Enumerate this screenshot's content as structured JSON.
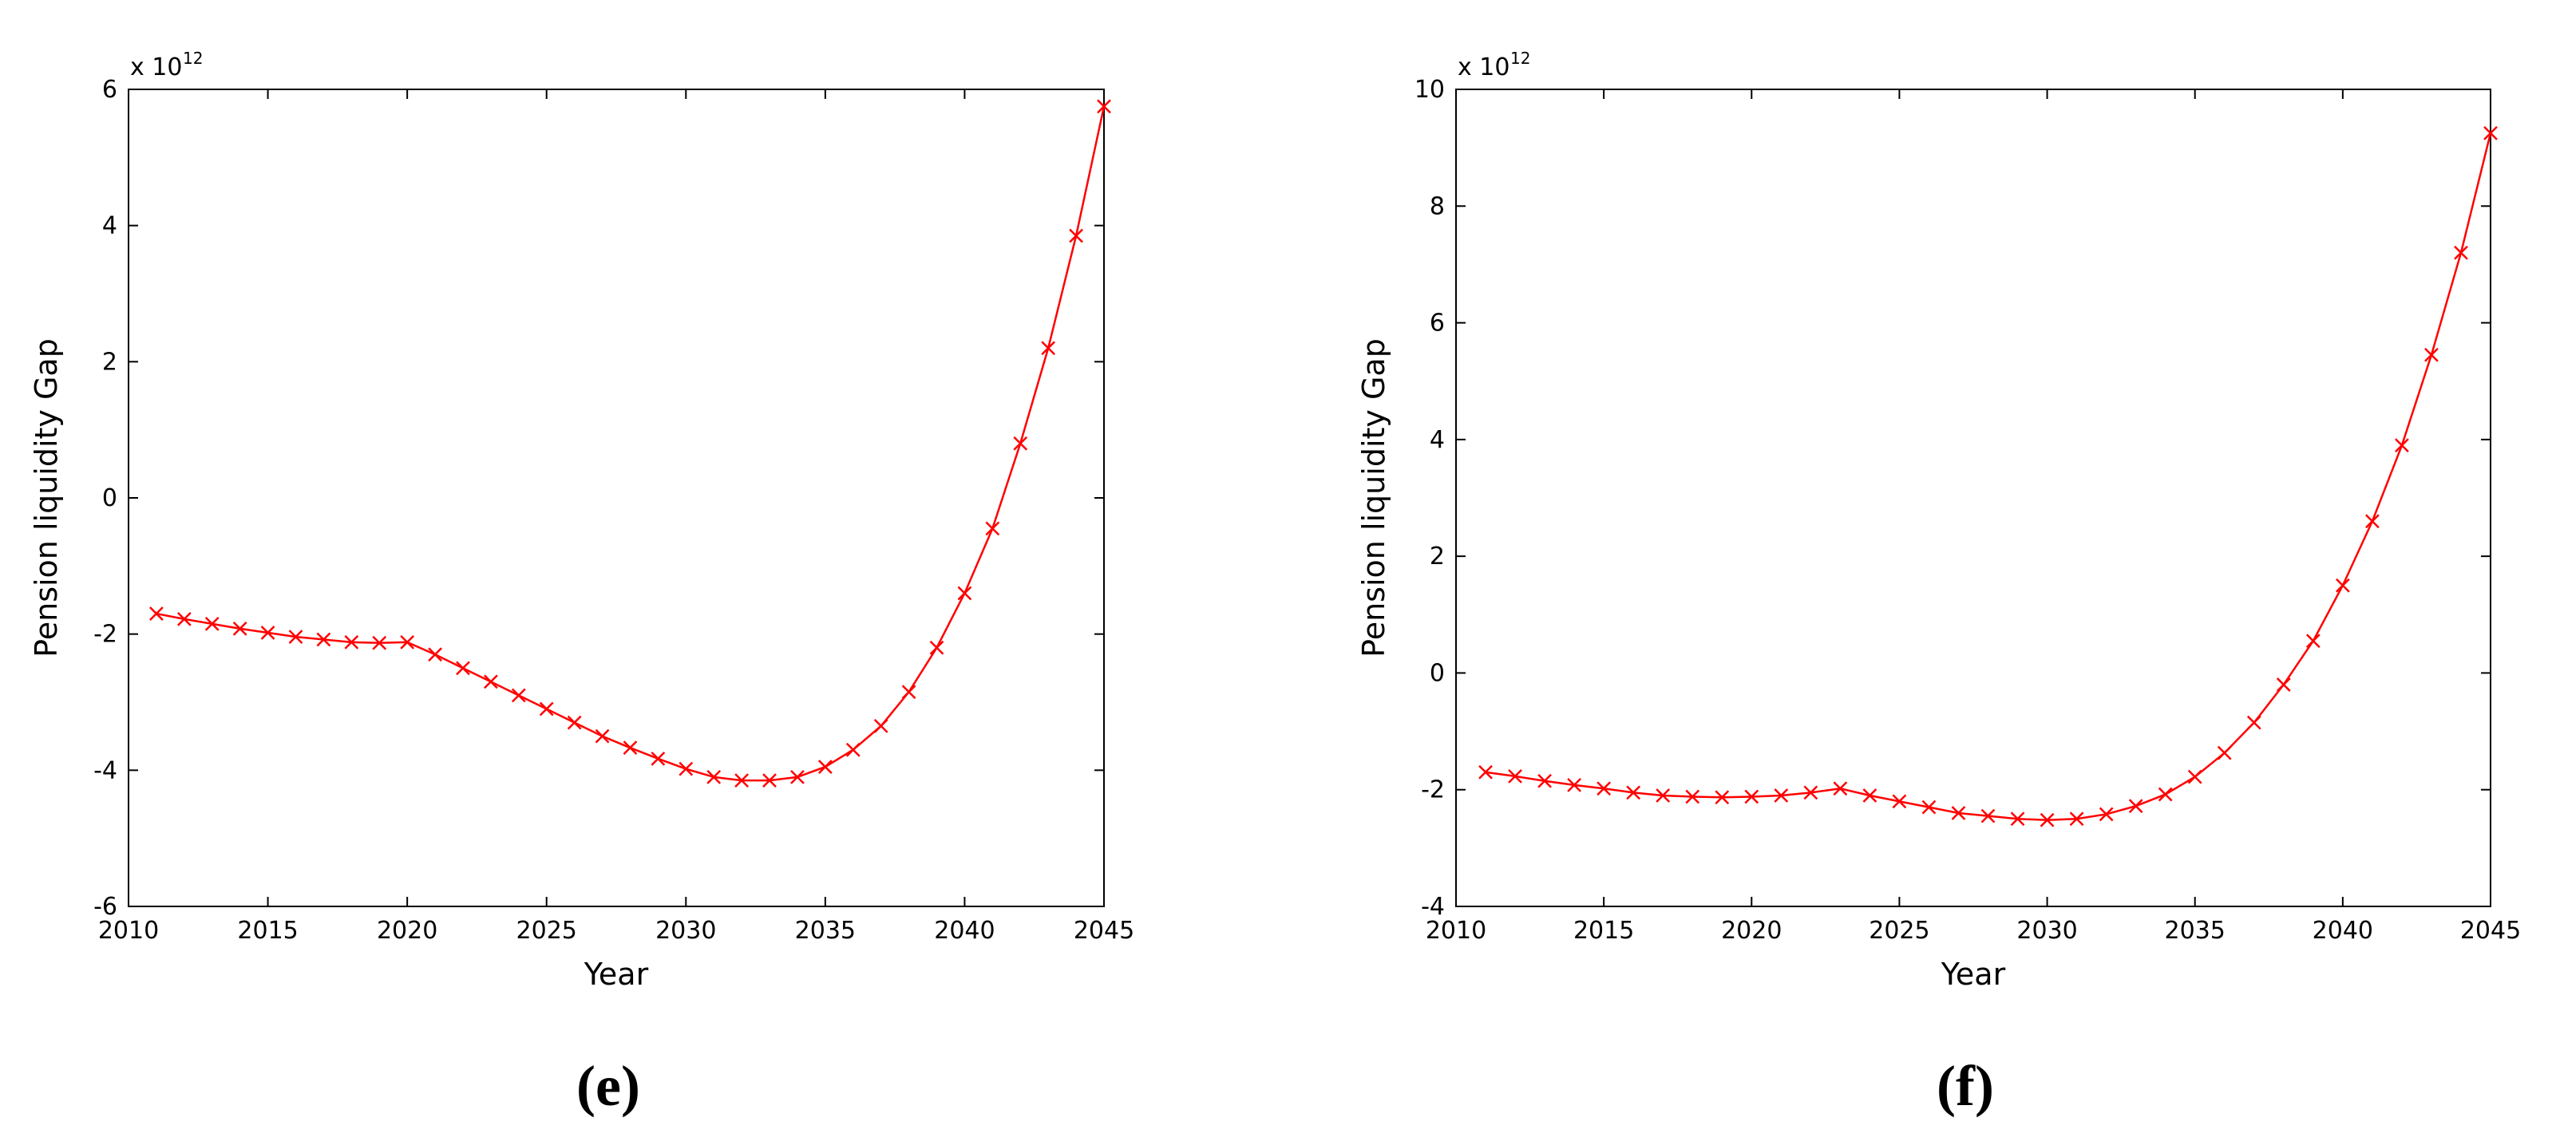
{
  "chart_data": [
    {
      "type": "line",
      "caption": "(e)",
      "x_label": "Year",
      "y_label": "Pension liquidity Gap",
      "axis_multiplier": {
        "base": "x 10",
        "exponent": "12"
      },
      "x": [
        2011,
        2012,
        2013,
        2014,
        2015,
        2016,
        2017,
        2018,
        2019,
        2020,
        2021,
        2022,
        2023,
        2024,
        2025,
        2026,
        2027,
        2028,
        2029,
        2030,
        2031,
        2032,
        2033,
        2034,
        2035,
        2036,
        2037,
        2038,
        2039,
        2040,
        2041,
        2042,
        2043,
        2044,
        2045
      ],
      "values": [
        -1.7,
        -1.78,
        -1.85,
        -1.92,
        -1.98,
        -2.04,
        -2.08,
        -2.12,
        -2.13,
        -2.12,
        -2.3,
        -2.5,
        -2.7,
        -2.9,
        -3.1,
        -3.3,
        -3.5,
        -3.67,
        -3.83,
        -3.98,
        -4.1,
        -4.15,
        -4.15,
        -4.1,
        -3.95,
        -3.7,
        -3.35,
        -2.85,
        -2.2,
        -1.4,
        -0.45,
        0.8,
        2.2,
        3.85,
        5.75
      ],
      "color": "#ff0000",
      "marker": "x",
      "xlim": [
        2010,
        2045
      ],
      "xticks": [
        2010,
        2015,
        2020,
        2025,
        2030,
        2035,
        2040,
        2045
      ],
      "ylim": [
        -6,
        6
      ],
      "yticks": [
        -6,
        -4,
        -2,
        0,
        2,
        4,
        6
      ],
      "grid": false
    },
    {
      "type": "line",
      "caption": "(f)",
      "x_label": "Year",
      "y_label": "Pension liquidity Gap",
      "axis_multiplier": {
        "base": "x 10",
        "exponent": "12"
      },
      "x": [
        2011,
        2012,
        2013,
        2014,
        2015,
        2016,
        2017,
        2018,
        2019,
        2020,
        2021,
        2022,
        2023,
        2024,
        2025,
        2026,
        2027,
        2028,
        2029,
        2030,
        2031,
        2032,
        2033,
        2034,
        2035,
        2036,
        2037,
        2038,
        2039,
        2040,
        2041,
        2042,
        2043,
        2044,
        2045
      ],
      "values": [
        -1.7,
        -1.77,
        -1.85,
        -1.92,
        -1.98,
        -2.05,
        -2.1,
        -2.12,
        -2.13,
        -2.12,
        -2.1,
        -2.05,
        -1.98,
        -2.1,
        -2.2,
        -2.3,
        -2.4,
        -2.45,
        -2.5,
        -2.52,
        -2.5,
        -2.42,
        -2.28,
        -2.08,
        -1.78,
        -1.37,
        -0.85,
        -0.2,
        0.55,
        1.5,
        2.6,
        3.9,
        5.45,
        7.2,
        9.25
      ],
      "color": "#ff0000",
      "marker": "x",
      "xlim": [
        2010,
        2045
      ],
      "xticks": [
        2010,
        2015,
        2020,
        2025,
        2030,
        2035,
        2040,
        2045
      ],
      "ylim": [
        -4,
        10
      ],
      "yticks": [
        -4,
        -2,
        0,
        2,
        4,
        6,
        8,
        10
      ],
      "grid": false
    }
  ]
}
